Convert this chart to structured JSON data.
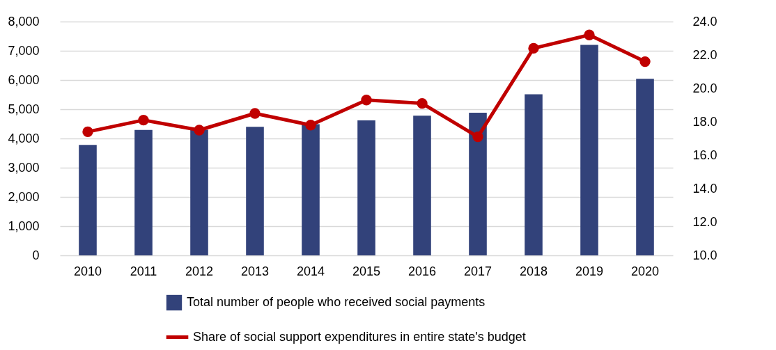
{
  "chart_data": {
    "type": "bar",
    "categories": [
      "2010",
      "2011",
      "2012",
      "2013",
      "2014",
      "2015",
      "2016",
      "2017",
      "2018",
      "2019",
      "2020"
    ],
    "series": [
      {
        "name": "Total number of people who received social payments",
        "color": "#32427a",
        "values": [
          3780,
          4290,
          4300,
          4400,
          4490,
          4620,
          4780,
          4880,
          5510,
          7200,
          6040
        ]
      },
      {
        "name": "Share of social support expenditures in entire state's budget",
        "type": "line",
        "axis": "y2",
        "color": "#c00000",
        "marker": "circle",
        "values": [
          17.4,
          18.1,
          17.5,
          18.5,
          17.8,
          19.3,
          19.1,
          17.1,
          22.4,
          23.2,
          21.6
        ]
      }
    ],
    "ylim": [
      0,
      8000
    ],
    "yticks": [
      0,
      {
        "value": 1000,
        "label": "1,000"
      },
      {
        "value": 2000,
        "label": "2,000"
      },
      {
        "value": 3000,
        "label": "3,000"
      },
      {
        "value": 4000,
        "label": "4,000"
      },
      {
        "value": 5000,
        "label": "5,000"
      },
      {
        "value": 6000,
        "label": "6,000"
      },
      {
        "value": 7000,
        "label": "7,000"
      },
      {
        "value": 8000,
        "label": "8,000"
      }
    ],
    "y2lim": [
      10,
      24
    ],
    "y2ticks": [
      {
        "value": 10,
        "label": "10.0"
      },
      {
        "value": 12,
        "label": "12.0"
      },
      {
        "value": 14,
        "label": "14.0"
      },
      {
        "value": 16,
        "label": "16.0"
      },
      {
        "value": 18,
        "label": "18.0"
      },
      {
        "value": 20,
        "label": "20.0"
      },
      {
        "value": 22,
        "label": "22.0"
      },
      {
        "value": 24,
        "label": "24.0"
      }
    ],
    "grid": "y",
    "legend": "bottom"
  }
}
